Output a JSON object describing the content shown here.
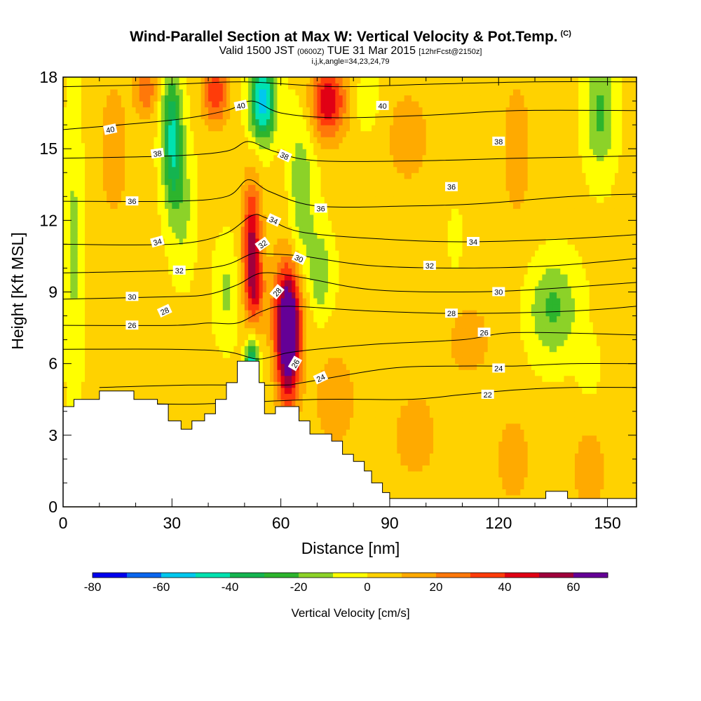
{
  "header": {
    "title": "Wind-Parallel Section at Max W: Vertical Velocity & Pot.Temp.",
    "title_tag": "(C)",
    "valid_prefix": "Valid 1500 JST",
    "valid_utc": "(0600Z)",
    "valid_date": "TUE 31 Mar 2015",
    "fcst_tag": "[12hrFcst@2150z]",
    "indices": "i,j,k,angle=34,23,24,79"
  },
  "colors": {
    "levels": [
      "#0000ee",
      "#0a66ee",
      "#00c8ee",
      "#00e2b0",
      "#14b450",
      "#2db42d",
      "#8cd228",
      "#ffff00",
      "#ffd200",
      "#ffaa00",
      "#ff780a",
      "#ff3c0a",
      "#e10014",
      "#a0003c",
      "#640096"
    ]
  },
  "chart_data": {
    "type": "heatmap",
    "title": "Wind-Parallel Section at Max W: Vertical Velocity & Pot.Temp.",
    "xlabel": "Distance [nm]",
    "ylabel": "Height [Kft MSL]",
    "xlim": [
      0,
      158
    ],
    "ylim": [
      0,
      18
    ],
    "x_ticks": [
      "0",
      "30",
      "60",
      "90",
      "120",
      "150"
    ],
    "y_ticks": [
      "0",
      "3",
      "6",
      "9",
      "12",
      "15",
      "18"
    ],
    "colorbar": {
      "label": "Vertical Velocity [cm/s]",
      "tick_labels": [
        "-80",
        "-60",
        "-40",
        "-20",
        "0",
        "20",
        "40",
        "60"
      ],
      "range": [
        -80,
        70
      ]
    },
    "w_features": [
      {
        "x": 62,
        "y": 6.8,
        "w": 70,
        "sx": 2.2,
        "sy": 1.8
      },
      {
        "x": 62,
        "y": 8.3,
        "w": 35,
        "sx": 3,
        "sy": 1.5
      },
      {
        "x": 52,
        "y": 11,
        "w": 50,
        "sx": 1.8,
        "sy": 1.8
      },
      {
        "x": 53,
        "y": 9,
        "w": 25,
        "sx": 1.8,
        "sy": 1
      },
      {
        "x": 73,
        "y": 17,
        "w": 45,
        "sx": 3.5,
        "sy": 1.1
      },
      {
        "x": 42,
        "y": 17.3,
        "w": 35,
        "sx": 2.5,
        "sy": 0.9
      },
      {
        "x": 23,
        "y": 17.5,
        "w": 25,
        "sx": 2,
        "sy": 0.8
      },
      {
        "x": 52,
        "y": 6,
        "w": -55,
        "sx": 1.2,
        "sy": 0.7
      },
      {
        "x": 55,
        "y": 17,
        "w": -60,
        "sx": 2.5,
        "sy": 1.2
      },
      {
        "x": 30,
        "y": 15.5,
        "w": -45,
        "sx": 2,
        "sy": 2
      },
      {
        "x": 33,
        "y": 12.5,
        "w": -15,
        "sx": 2.5,
        "sy": 2
      },
      {
        "x": 65,
        "y": 13,
        "w": -25,
        "sx": 3,
        "sy": 2.5
      },
      {
        "x": 71,
        "y": 9.8,
        "w": -20,
        "sx": 2.5,
        "sy": 1.3
      },
      {
        "x": 45,
        "y": 9,
        "w": -15,
        "sx": 2.5,
        "sy": 1.5
      },
      {
        "x": 3,
        "y": 11,
        "w": -15,
        "sx": 1.8,
        "sy": 5
      },
      {
        "x": 84,
        "y": 17,
        "w": -12,
        "sx": 2.5,
        "sy": 1
      },
      {
        "x": 148,
        "y": 16.5,
        "w": -25,
        "sx": 3,
        "sy": 1.8
      },
      {
        "x": 135,
        "y": 8.3,
        "w": -25,
        "sx": 5,
        "sy": 1.5
      },
      {
        "x": 145,
        "y": 5.8,
        "w": -10,
        "sx": 2,
        "sy": 0.8
      },
      {
        "x": 108,
        "y": 11.2,
        "w": -8,
        "sx": 1.5,
        "sy": 1
      },
      {
        "x": 75,
        "y": 4.5,
        "w": 15,
        "sx": 4,
        "sy": 1.5
      },
      {
        "x": 97,
        "y": 3,
        "w": 12,
        "sx": 5,
        "sy": 1.5
      },
      {
        "x": 124,
        "y": 2,
        "w": 12,
        "sx": 4,
        "sy": 1.5
      },
      {
        "x": 145,
        "y": 1.5,
        "w": 12,
        "sx": 4,
        "sy": 1.5
      },
      {
        "x": 62,
        "y": 12.5,
        "w": 10,
        "sx": 3,
        "sy": 2
      },
      {
        "x": 95,
        "y": 15.5,
        "w": 10,
        "sx": 6,
        "sy": 2
      },
      {
        "x": 14,
        "y": 15,
        "w": 10,
        "sx": 4,
        "sy": 3
      },
      {
        "x": 125,
        "y": 15,
        "w": 10,
        "sx": 4,
        "sy": 3
      },
      {
        "x": 112,
        "y": 7,
        "w": 10,
        "sx": 6,
        "sy": 1.5
      }
    ],
    "theta_contours": [
      {
        "level": 22,
        "pts": [
          [
            10,
            4.4
          ],
          [
            35,
            4.3
          ],
          [
            70,
            4.5
          ],
          [
            95,
            4.5
          ],
          [
            110,
            4.7
          ],
          [
            125,
            4.9
          ],
          [
            140,
            5.0
          ],
          [
            158,
            5.0
          ]
        ]
      },
      {
        "level": 24,
        "pts": [
          [
            10,
            5.0
          ],
          [
            35,
            5.1
          ],
          [
            60,
            5.1
          ],
          [
            66,
            5.2
          ],
          [
            90,
            5.8
          ],
          [
            110,
            5.9
          ],
          [
            125,
            5.9
          ],
          [
            140,
            6.0
          ],
          [
            158,
            6.0
          ]
        ]
      },
      {
        "level": 26,
        "pts": [
          [
            0,
            6.6
          ],
          [
            30,
            6.6
          ],
          [
            45,
            6.5
          ],
          [
            53,
            6.2
          ],
          [
            58,
            6.3
          ],
          [
            64,
            6.5
          ],
          [
            85,
            6.8
          ],
          [
            110,
            7.0
          ],
          [
            125,
            7.3
          ],
          [
            158,
            7.2
          ]
        ]
      },
      {
        "level": 28,
        "pts": [
          [
            0,
            7.6
          ],
          [
            30,
            7.6
          ],
          [
            40,
            7.7
          ],
          [
            48,
            7.7
          ],
          [
            55,
            8.2
          ],
          [
            62,
            8.4
          ],
          [
            85,
            8.2
          ],
          [
            110,
            8.1
          ],
          [
            140,
            8.2
          ],
          [
            158,
            8.4
          ]
        ]
      },
      {
        "level": 30,
        "pts": [
          [
            0,
            8.7
          ],
          [
            30,
            8.8
          ],
          [
            40,
            8.9
          ],
          [
            48,
            9.3
          ],
          [
            55,
            9.8
          ],
          [
            66,
            9.6
          ],
          [
            85,
            9.1
          ],
          [
            110,
            9.0
          ],
          [
            130,
            9.1
          ],
          [
            158,
            9.4
          ]
        ]
      },
      {
        "level": 32,
        "pts": [
          [
            0,
            9.8
          ],
          [
            30,
            9.9
          ],
          [
            44,
            10.1
          ],
          [
            52,
            10.6
          ],
          [
            56,
            10.6
          ],
          [
            66,
            10.5
          ],
          [
            85,
            10.1
          ],
          [
            110,
            10.0
          ],
          [
            135,
            10.1
          ],
          [
            158,
            10.4
          ]
        ]
      },
      {
        "level": 34,
        "pts": [
          [
            0,
            11.0
          ],
          [
            30,
            11.0
          ],
          [
            44,
            11.4
          ],
          [
            52,
            12.2
          ],
          [
            56,
            12.1
          ],
          [
            66,
            11.5
          ],
          [
            90,
            11.2
          ],
          [
            110,
            11.1
          ],
          [
            135,
            11.2
          ],
          [
            158,
            11.4
          ]
        ]
      },
      {
        "level": 36,
        "pts": [
          [
            0,
            12.8
          ],
          [
            30,
            12.8
          ],
          [
            45,
            13.0
          ],
          [
            51,
            13.7
          ],
          [
            57,
            13.2
          ],
          [
            70,
            12.6
          ],
          [
            95,
            12.6
          ],
          [
            115,
            12.7
          ],
          [
            140,
            13.0
          ],
          [
            158,
            13.1
          ]
        ]
      },
      {
        "level": 38,
        "pts": [
          [
            0,
            14.6
          ],
          [
            30,
            14.7
          ],
          [
            45,
            14.9
          ],
          [
            51,
            15.3
          ],
          [
            58,
            14.9
          ],
          [
            70,
            14.5
          ],
          [
            100,
            14.5
          ],
          [
            125,
            14.6
          ],
          [
            158,
            14.7
          ]
        ]
      },
      {
        "level": 40,
        "pts": [
          [
            0,
            15.8
          ],
          [
            30,
            16.2
          ],
          [
            45,
            16.6
          ],
          [
            52,
            17.0
          ],
          [
            60,
            16.5
          ],
          [
            75,
            16.3
          ],
          [
            100,
            16.4
          ],
          [
            125,
            16.6
          ],
          [
            158,
            16.6
          ]
        ]
      },
      {
        "level": 42,
        "pts": [
          [
            0,
            17.6
          ],
          [
            30,
            17.7
          ],
          [
            50,
            17.8
          ],
          [
            75,
            17.6
          ],
          [
            100,
            17.7
          ],
          [
            130,
            17.8
          ],
          [
            158,
            17.8
          ]
        ]
      }
    ],
    "theta_labels": [
      {
        "text": "40",
        "x": 13,
        "y": 15.8,
        "r": -12
      },
      {
        "text": "40",
        "x": 49,
        "y": 16.8,
        "r": -12
      },
      {
        "text": "40",
        "x": 88,
        "y": 16.8,
        "r": 0
      },
      {
        "text": "38",
        "x": 26,
        "y": 14.8,
        "r": -8
      },
      {
        "text": "38",
        "x": 61,
        "y": 14.7,
        "r": 25
      },
      {
        "text": "38",
        "x": 120,
        "y": 15.3,
        "r": 0
      },
      {
        "text": "36",
        "x": 19,
        "y": 12.8,
        "r": 0
      },
      {
        "text": "36",
        "x": 71,
        "y": 12.5,
        "r": 0
      },
      {
        "text": "36",
        "x": 107,
        "y": 13.4,
        "r": 0
      },
      {
        "text": "34",
        "x": 26,
        "y": 11.1,
        "r": -15
      },
      {
        "text": "34",
        "x": 58,
        "y": 12.0,
        "r": 25
      },
      {
        "text": "34",
        "x": 113,
        "y": 11.1,
        "r": 0
      },
      {
        "text": "32",
        "x": 32,
        "y": 9.9,
        "r": 0
      },
      {
        "text": "32",
        "x": 55,
        "y": 11.0,
        "r": -35
      },
      {
        "text": "32",
        "x": 101,
        "y": 10.1,
        "r": 0
      },
      {
        "text": "30",
        "x": 19,
        "y": 8.8,
        "r": 0
      },
      {
        "text": "30",
        "x": 65,
        "y": 10.4,
        "r": 25
      },
      {
        "text": "30",
        "x": 120,
        "y": 9.0,
        "r": 0
      },
      {
        "text": "28",
        "x": 28,
        "y": 8.2,
        "r": -25
      },
      {
        "text": "28",
        "x": 59,
        "y": 9.0,
        "r": -50
      },
      {
        "text": "28",
        "x": 107,
        "y": 8.1,
        "r": 0
      },
      {
        "text": "26",
        "x": 19,
        "y": 7.6,
        "r": 0
      },
      {
        "text": "26",
        "x": 64,
        "y": 6.0,
        "r": -60
      },
      {
        "text": "26",
        "x": 116,
        "y": 7.3,
        "r": 0
      },
      {
        "text": "24",
        "x": 71,
        "y": 5.4,
        "r": -25
      },
      {
        "text": "24",
        "x": 120,
        "y": 5.8,
        "r": 0
      },
      {
        "text": "22",
        "x": 117,
        "y": 4.7,
        "r": 0
      }
    ],
    "terrain": [
      [
        0,
        4.2
      ],
      [
        3,
        4.2
      ],
      [
        3,
        4.5
      ],
      [
        10,
        4.5
      ],
      [
        10,
        4.85
      ],
      [
        19.5,
        4.85
      ],
      [
        19.5,
        4.5
      ],
      [
        26,
        4.5
      ],
      [
        26,
        4.3
      ],
      [
        29,
        4.3
      ],
      [
        29,
        3.6
      ],
      [
        32.5,
        3.6
      ],
      [
        32.5,
        3.25
      ],
      [
        35.5,
        3.25
      ],
      [
        35.5,
        3.6
      ],
      [
        39,
        3.6
      ],
      [
        39,
        3.9
      ],
      [
        42,
        3.9
      ],
      [
        42,
        4.5
      ],
      [
        45,
        4.5
      ],
      [
        45,
        5.2
      ],
      [
        48,
        5.2
      ],
      [
        48,
        6.1
      ],
      [
        54,
        6.1
      ],
      [
        54,
        5.2
      ],
      [
        55.5,
        5.2
      ],
      [
        55.5,
        3.9
      ],
      [
        58.5,
        3.9
      ],
      [
        58.5,
        4.2
      ],
      [
        65,
        4.2
      ],
      [
        65,
        3.6
      ],
      [
        68,
        3.6
      ],
      [
        68,
        3.05
      ],
      [
        74,
        3.05
      ],
      [
        74,
        2.75
      ],
      [
        77,
        2.75
      ],
      [
        77,
        2.2
      ],
      [
        80,
        2.2
      ],
      [
        80,
        1.9
      ],
      [
        83,
        1.9
      ],
      [
        83,
        1.5
      ],
      [
        85,
        1.5
      ],
      [
        85,
        1.0
      ],
      [
        88,
        1.0
      ],
      [
        88,
        0.6
      ],
      [
        90,
        0.6
      ],
      [
        90,
        0.35
      ],
      [
        133,
        0.35
      ],
      [
        133,
        0.65
      ],
      [
        139,
        0.65
      ],
      [
        139,
        0.35
      ],
      [
        158,
        0.35
      ],
      [
        158,
        0
      ],
      [
        0,
        0
      ]
    ]
  }
}
